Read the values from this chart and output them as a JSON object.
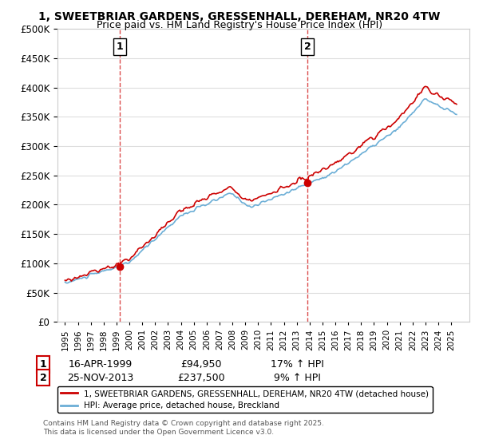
{
  "title1": "1, SWEETBRIAR GARDENS, GRESSENHALL, DEREHAM, NR20 4TW",
  "title2": "Price paid vs. HM Land Registry's House Price Index (HPI)",
  "ylabel_ticks": [
    "£0",
    "£50K",
    "£100K",
    "£150K",
    "£200K",
    "£250K",
    "£300K",
    "£350K",
    "£400K",
    "£450K",
    "£500K"
  ],
  "ytick_values": [
    0,
    50000,
    100000,
    150000,
    200000,
    250000,
    300000,
    350000,
    400000,
    450000,
    500000
  ],
  "hpi_color": "#6baed6",
  "price_color": "#cc0000",
  "marker1_date_idx": 51,
  "marker2_date_idx": 227,
  "marker1_label": "16-APR-1999",
  "marker1_price": "£94,950",
  "marker1_pct": "17% ↑ HPI",
  "marker2_label": "25-NOV-2013",
  "marker2_price": "£237,500",
  "marker2_pct": "9% ↑ HPI",
  "legend_line1": "1, SWEETBRIAR GARDENS, GRESSENHALL, DEREHAM, NR20 4TW (detached house)",
  "legend_line2": "HPI: Average price, detached house, Breckland",
  "footnote": "Contains HM Land Registry data © Crown copyright and database right 2025.\nThis data is licensed under the Open Government Licence v3.0.",
  "xstart_year": 1995,
  "xend_year": 2026,
  "background_color": "#ffffff",
  "grid_color": "#dddddd"
}
